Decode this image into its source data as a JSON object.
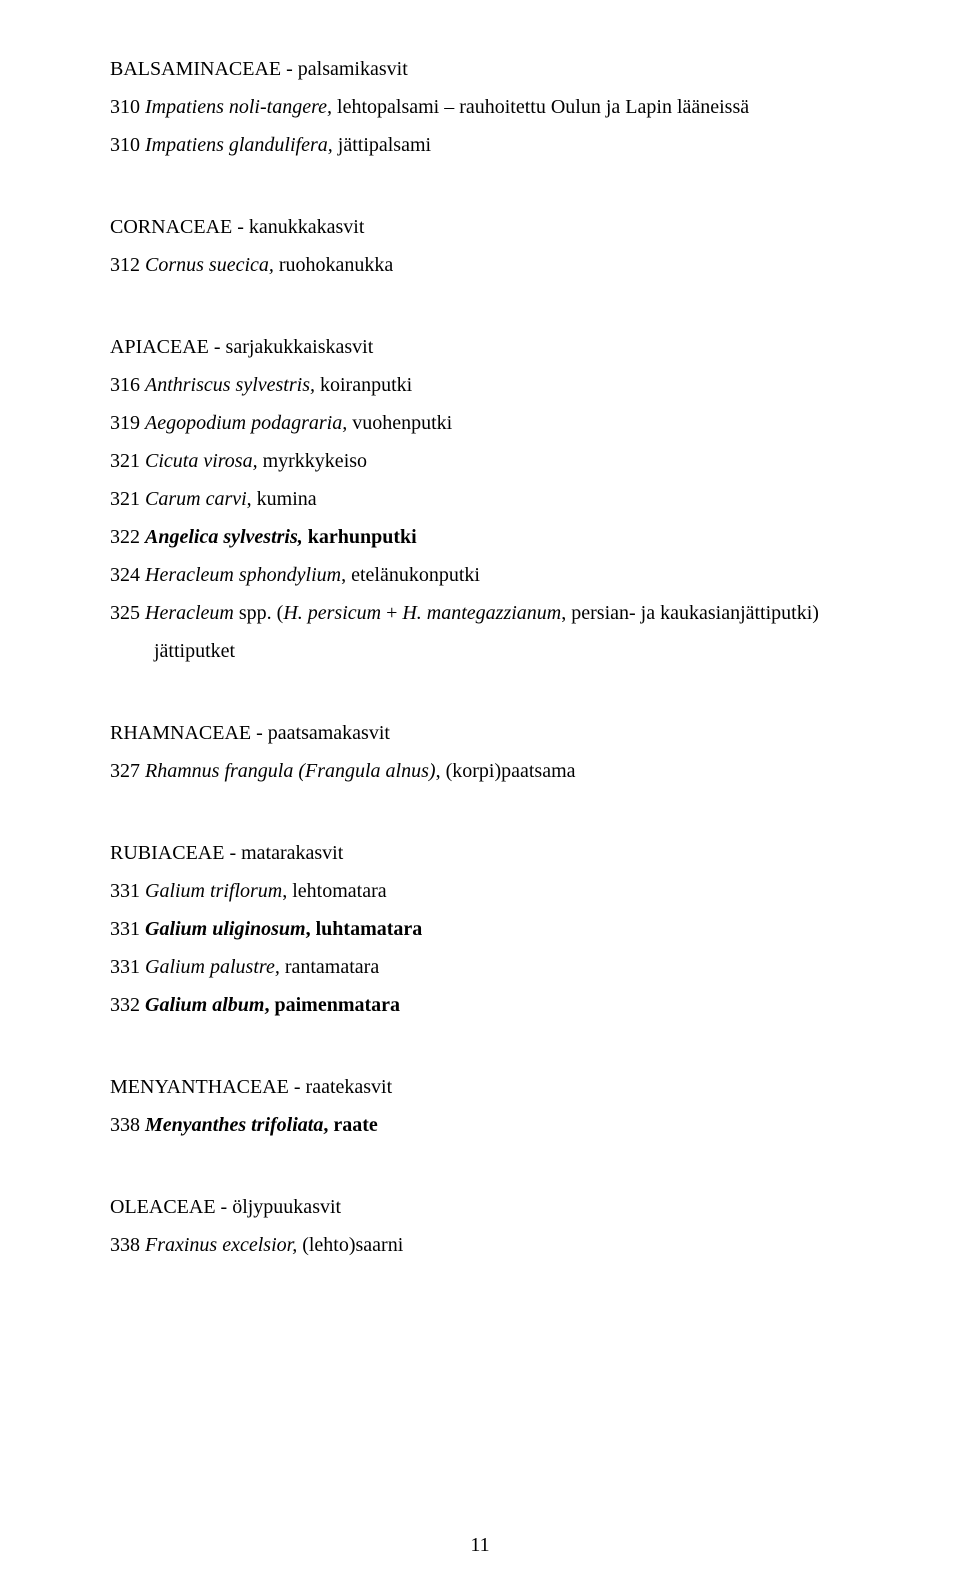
{
  "page_number": "11",
  "blocks": [
    {
      "title": "BALSAMINACEAE - palsamikasvit",
      "entries": [
        "310 <em>Impatiens noli-tangere,</em> lehtopalsami – rauhoitettu Oulun ja Lapin lääneissä",
        "310 <em>Impatiens glandulifera,</em> jättipalsami"
      ]
    },
    {
      "title": "CORNACEAE - kanukkakasvit",
      "entries": [
        "312 <em>Cornus suecica,</em> ruohokanukka"
      ]
    },
    {
      "title": "APIACEAE - sarjakukkaiskasvit",
      "entries": [
        "316 <em>Anthriscus sylvestris,</em> koiranputki",
        "319 <em>Aegopodium podagraria,</em> vuohenputki",
        "321 <em>Cicuta virosa,</em> myrkkykeiso",
        "321 <em>Carum carvi</em>, kumina",
        "322 <em class=\"b\">Angelica sylvestris,</em> <span class=\"b\">karhunputki</span>",
        "324  <em>Heracleum sphondylium</em>, etelänukonputki",
        "325 <em>Heracleum</em> spp. (<em>H. persicum</em> + <em>H. mantegazzianum</em>, persian- ja kaukasianjättiputki)",
        "<span class=\"indent-wrap\">jättiputket</span>"
      ]
    },
    {
      "title": "RHAMNACEAE - paatsamakasvit",
      "entries": [
        "327 <em>Rhamnus frangula (Frangula alnus)</em>, (korpi)paatsama"
      ]
    },
    {
      "title": "RUBIACEAE - matarakasvit",
      "entries": [
        "331 <em>Galium triflorum</em>, lehtomatara",
        "331 <em class=\"b\">Galium uliginosum</em><span class=\"b\">, luhtamatara</span>",
        "331 <em>Galium palustre,</em> rantamatara",
        "332 <em class=\"b\">Galium album</em><span class=\"b\">, paimenmatara</span>"
      ]
    },
    {
      "title": "MENYANTHACEAE - raatekasvit",
      "entries": [
        "338 <em class=\"b\">Menyanthes trifoliata</em><span class=\"b\">, raate</span>"
      ]
    },
    {
      "title": "OLEACEAE - öljypuukasvit",
      "entries": [
        "338 <em>Fraxinus excelsior,</em> (lehto)saarni"
      ]
    }
  ]
}
